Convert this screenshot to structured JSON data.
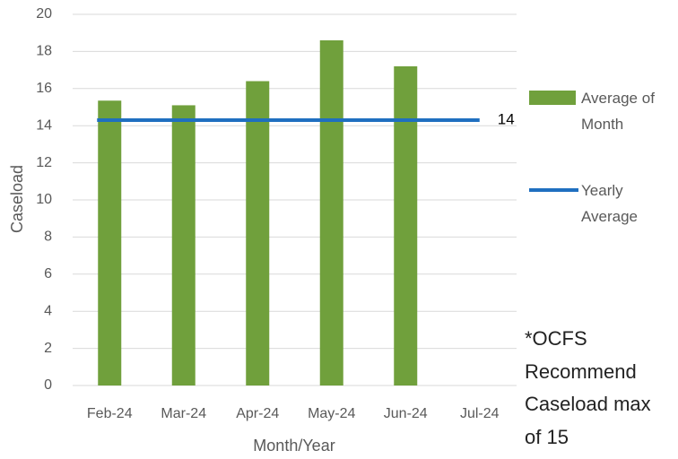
{
  "chart_data": {
    "type": "bar",
    "categories": [
      "Feb-24",
      "Mar-24",
      "Apr-24",
      "May-24",
      "Jun-24",
      "Jul-24"
    ],
    "series": [
      {
        "name": "Average of Month",
        "color": "#70a03c",
        "values": [
          15.35,
          15.1,
          16.4,
          18.6,
          17.2,
          null
        ]
      },
      {
        "name": "Yearly Average",
        "color": "#1f6fc0",
        "type": "line",
        "values": [
          14.3,
          14.3,
          14.3,
          14.3,
          14.3,
          14.3
        ],
        "value_labels": [
          null,
          null,
          null,
          null,
          null,
          "14"
        ]
      }
    ],
    "ylim": [
      0,
      20
    ],
    "yticks": [
      0,
      2,
      4,
      6,
      8,
      10,
      12,
      14,
      16,
      18,
      20
    ],
    "grid": true,
    "y_label": "Caseload",
    "x_label": "Month/Year",
    "annotation": "*OCFS Recommend Caseload max of 15"
  }
}
